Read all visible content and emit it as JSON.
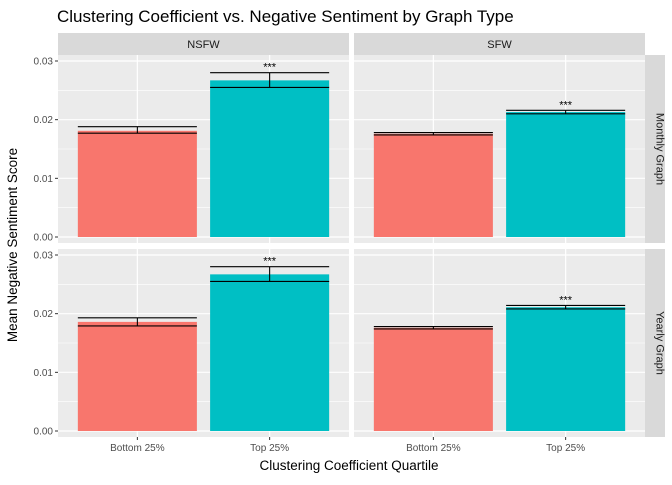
{
  "chart_data": {
    "type": "bar",
    "title": "Clustering Coefficient vs. Negative Sentiment by Graph Type",
    "xlabel": "Clustering Coefficient Quartile",
    "ylabel": "Mean Negative Sentiment Score",
    "categories": [
      "Bottom 25%",
      "Top 25%"
    ],
    "category_colors": [
      "#F8766D",
      "#00BFC4"
    ],
    "column_facets": [
      "NSFW",
      "SFW"
    ],
    "row_facets": [
      "Monthly Graph",
      "Yearly Graph"
    ],
    "ylim": [
      0,
      0.03
    ],
    "yticks": [
      0.0,
      0.01,
      0.02,
      0.03
    ],
    "ytick_labels": [
      "0.00",
      "0.01",
      "0.02",
      "0.03"
    ],
    "grid": true,
    "legend": "none",
    "panels": [
      {
        "column": "NSFW",
        "row": "Monthly Graph",
        "values": [
          0.0181,
          0.0267
        ],
        "error_low": [
          0.0177,
          0.0255
        ],
        "error_high": [
          0.0188,
          0.028
        ],
        "annotations": [
          "",
          "***"
        ]
      },
      {
        "column": "SFW",
        "row": "Monthly Graph",
        "values": [
          0.0176,
          0.0213
        ],
        "error_low": [
          0.0174,
          0.021
        ],
        "error_high": [
          0.0178,
          0.0216
        ],
        "annotations": [
          "",
          "***"
        ]
      },
      {
        "column": "NSFW",
        "row": "Yearly Graph",
        "values": [
          0.0186,
          0.0267
        ],
        "error_low": [
          0.0179,
          0.0255
        ],
        "error_high": [
          0.0193,
          0.028
        ],
        "annotations": [
          "",
          "***"
        ]
      },
      {
        "column": "SFW",
        "row": "Yearly Graph",
        "values": [
          0.0176,
          0.0211
        ],
        "error_low": [
          0.0174,
          0.0208
        ],
        "error_high": [
          0.0178,
          0.0214
        ],
        "annotations": [
          "",
          "***"
        ]
      }
    ]
  }
}
